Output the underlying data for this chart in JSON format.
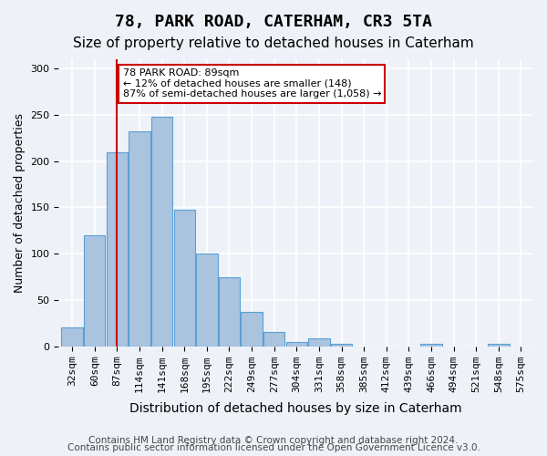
{
  "title1": "78, PARK ROAD, CATERHAM, CR3 5TA",
  "title2": "Size of property relative to detached houses in Caterham",
  "xlabel": "Distribution of detached houses by size in Caterham",
  "ylabel": "Number of detached properties",
  "bins": [
    "32sqm",
    "60sqm",
    "87sqm",
    "114sqm",
    "141sqm",
    "168sqm",
    "195sqm",
    "222sqm",
    "249sqm",
    "277sqm",
    "304sqm",
    "331sqm",
    "358sqm",
    "385sqm",
    "412sqm",
    "439sqm",
    "466sqm",
    "494sqm",
    "521sqm",
    "548sqm",
    "575sqm"
  ],
  "values": [
    20,
    120,
    210,
    232,
    248,
    147,
    100,
    75,
    37,
    15,
    5,
    9,
    3,
    0,
    0,
    0,
    3,
    0,
    0,
    3,
    0
  ],
  "bar_color": "#aac4e0",
  "bar_edge_color": "#5a9fd4",
  "vline_x_index": 2,
  "vline_color": "#cc0000",
  "annotation_text": "78 PARK ROAD: 89sqm\n← 12% of detached houses are smaller (148)\n87% of semi-detached houses are larger (1,058) →",
  "annotation_box_color": "#ffffff",
  "annotation_box_edge": "#cc0000",
  "ylim": [
    0,
    310
  ],
  "yticks": [
    0,
    50,
    100,
    150,
    200,
    250,
    300
  ],
  "footer1": "Contains HM Land Registry data © Crown copyright and database right 2024.",
  "footer2": "Contains public sector information licensed under the Open Government Licence v3.0.",
  "bg_color": "#eef2f8",
  "plot_bg_color": "#eef2f8",
  "grid_color": "#ffffff",
  "title1_fontsize": 13,
  "title2_fontsize": 11,
  "xlabel_fontsize": 10,
  "ylabel_fontsize": 9,
  "tick_fontsize": 8,
  "footer_fontsize": 7.5
}
